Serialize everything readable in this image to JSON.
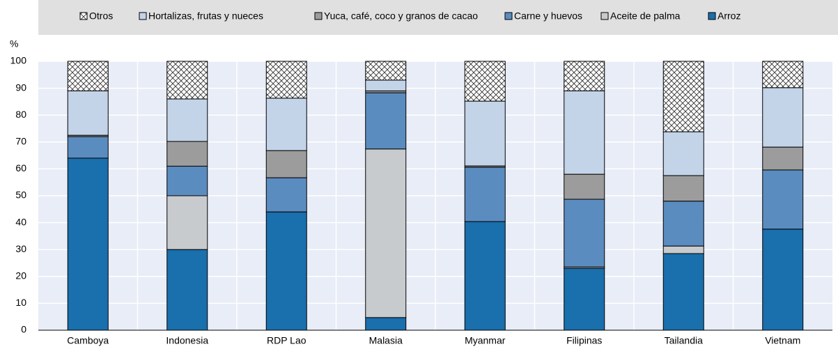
{
  "chart_data": {
    "type": "stacked_bar",
    "y_label": "%",
    "categories": [
      "Camboya",
      "Indonesia",
      "RDP Lao",
      "Malasia",
      "Myanmar",
      "Filipinas",
      "Tailandia",
      "Vietnam"
    ],
    "series": [
      {
        "name": "Arroz",
        "color": "#1a6fad",
        "values": [
          64,
          30,
          44,
          4.7,
          40.4,
          23,
          28.5,
          37.6
        ]
      },
      {
        "name": "Aceite de palma",
        "color": "#c8cbce",
        "values": [
          0,
          20,
          0,
          62.7,
          0,
          0.5,
          2.8,
          0
        ]
      },
      {
        "name": "Carne y huevos",
        "color": "#5b8cbf",
        "values": [
          8,
          11,
          12.7,
          20.9,
          20.2,
          25.2,
          16.7,
          22
        ]
      },
      {
        "name": "Yuca, café, coco y granos de cacao",
        "color": "#9c9c9c",
        "values": [
          0.5,
          9.2,
          10.1,
          0.7,
          0.5,
          9.3,
          9.5,
          8.5
        ]
      },
      {
        "name": "Hortalizas, frutas y nueces",
        "color": "#c3d3e8",
        "values": [
          16.5,
          15.8,
          19.5,
          4,
          24.1,
          31,
          16.3,
          22.1
        ]
      },
      {
        "name": "Otros",
        "color": "#ffffff",
        "pattern": "crosshatch",
        "values": [
          11,
          14,
          13.7,
          7,
          14.8,
          11,
          26.2,
          9.8
        ]
      }
    ],
    "ylim": [
      0,
      100
    ],
    "yticks": [
      0,
      10,
      20,
      30,
      40,
      50,
      60,
      70,
      80,
      90,
      100
    ],
    "grid": true
  }
}
